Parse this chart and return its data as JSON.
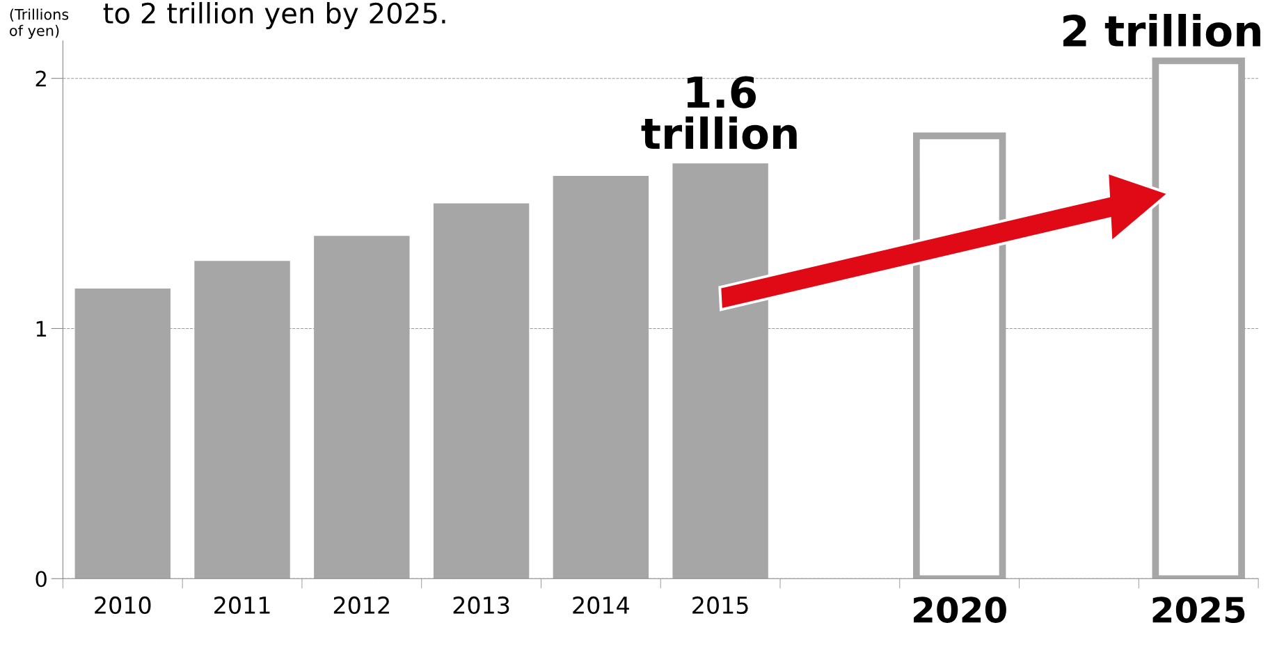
{
  "chart_data": {
    "type": "bar",
    "title": "to 2 trillion yen by 2025.",
    "ylabel": "(Trillions\nof yen)",
    "categories": [
      "2010",
      "2011",
      "2012",
      "2013",
      "2014",
      "2015",
      null,
      "2020",
      null,
      "2025"
    ],
    "series": [
      {
        "color": "#a6a6a6",
        "values": [
          1.16,
          1.27,
          1.37,
          1.5,
          1.61,
          1.66,
          null,
          null,
          null,
          null
        ]
      },
      {
        "color": "#a6a6a6",
        "values": [
          null,
          null,
          null,
          null,
          null,
          null,
          null,
          1.77,
          null,
          2.07
        ]
      }
    ],
    "ylim": [
      0,
      2.15
    ],
    "yticks": [
      0,
      1,
      2
    ],
    "grid": "y",
    "annotations": [
      {
        "text": "1.6\ntrillion",
        "x": "2015",
        "y": 1.66
      },
      {
        "text": "2 trillion",
        "x": "2025",
        "y": 2.07
      }
    ]
  }
}
